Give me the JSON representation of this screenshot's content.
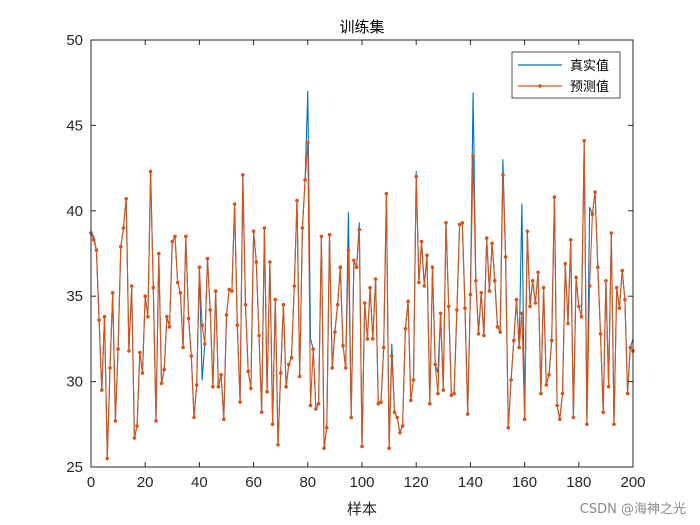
{
  "chart_data": {
    "type": "line",
    "title": "训练集",
    "xlabel": "样本",
    "ylabel": "",
    "xlim": [
      0,
      200
    ],
    "ylim": [
      25,
      50
    ],
    "xticks": [
      0,
      20,
      40,
      60,
      80,
      100,
      120,
      140,
      160,
      180,
      200
    ],
    "yticks": [
      25,
      30,
      35,
      40,
      45,
      50
    ],
    "x_tick_labels": [
      "0",
      "20",
      "40",
      "60",
      "80",
      "100",
      "120",
      "140",
      "160",
      "180",
      "200"
    ],
    "y_tick_labels": [
      "25",
      "30",
      "35",
      "40",
      "45",
      "50"
    ],
    "legend_position": "top-right",
    "series": [
      {
        "name": "真实值",
        "color": "#0072BD",
        "marker": "none",
        "x": [
          1,
          41,
          80,
          81,
          95,
          99,
          111,
          120,
          128,
          141,
          152,
          159,
          184,
          200
        ],
        "values": [
          38.5,
          30.1,
          47.0,
          32.5,
          39.9,
          39.3,
          32.2,
          42.3,
          30.5,
          46.9,
          43.0,
          40.4,
          40.2,
          32.5
        ]
      },
      {
        "name": "预测值",
        "color": "#D95319",
        "marker": "dot",
        "x": [
          0,
          1,
          2,
          3,
          4,
          5,
          6,
          7,
          8,
          9,
          10,
          11,
          12,
          13,
          14,
          15,
          16,
          17,
          18,
          19,
          20,
          21,
          22,
          23,
          24,
          25,
          26,
          27,
          28,
          29,
          30,
          31,
          32,
          33,
          34,
          35,
          36,
          37,
          38,
          39,
          40,
          41,
          42,
          43,
          44,
          45,
          46,
          47,
          48,
          49,
          50,
          51,
          52,
          53,
          54,
          55,
          56,
          57,
          58,
          59,
          60,
          61,
          62,
          63,
          64,
          65,
          66,
          67,
          68,
          69,
          70,
          71,
          72,
          73,
          74,
          75,
          76,
          77,
          78,
          79,
          80,
          81,
          82,
          83,
          84,
          85,
          86,
          87,
          88,
          89,
          90,
          91,
          92,
          93,
          94,
          95,
          96,
          97,
          98,
          99,
          100,
          101,
          102,
          103,
          104,
          105,
          106,
          107,
          108,
          109,
          110,
          111,
          112,
          113,
          114,
          115,
          116,
          117,
          118,
          119,
          120,
          121,
          122,
          123,
          124,
          125,
          126,
          127,
          128,
          129,
          130,
          131,
          132,
          133,
          134,
          135,
          136,
          137,
          138,
          139,
          140,
          141,
          142,
          143,
          144,
          145,
          146,
          147,
          148,
          149,
          150,
          151,
          152,
          153,
          154,
          155,
          156,
          157,
          158,
          159,
          160,
          161,
          162,
          163,
          164,
          165,
          166,
          167,
          168,
          169,
          170,
          171,
          172,
          173,
          174,
          175,
          176,
          177,
          178,
          179,
          180,
          181,
          182,
          183,
          184,
          185,
          186,
          187,
          188,
          189,
          190,
          191,
          192,
          193,
          194,
          195,
          196,
          197,
          198,
          199,
          200
        ],
        "values": [
          38.7,
          38.3,
          37.7,
          33.6,
          29.5,
          33.8,
          25.5,
          30.8,
          35.2,
          27.7,
          31.9,
          37.9,
          39.0,
          40.7,
          31.8,
          35.6,
          26.7,
          27.4,
          31.7,
          30.5,
          35.0,
          33.8,
          42.3,
          35.5,
          27.7,
          37.5,
          29.9,
          30.7,
          33.8,
          33.2,
          38.2,
          38.5,
          35.8,
          35.2,
          32.0,
          38.5,
          33.7,
          31.5,
          27.9,
          29.8,
          36.7,
          33.3,
          32.2,
          37.2,
          34.2,
          29.7,
          35.3,
          29.7,
          30.4,
          27.8,
          33.9,
          35.4,
          35.3,
          40.4,
          33.3,
          28.8,
          42.1,
          34.5,
          30.6,
          29.6,
          38.8,
          37.0,
          32.7,
          28.2,
          39.0,
          29.4,
          37.0,
          27.5,
          34.8,
          26.3,
          30.5,
          34.5,
          29.7,
          31.0,
          31.4,
          35.6,
          40.6,
          30.3,
          39.0,
          41.8,
          44.0,
          28.6,
          31.9,
          28.4,
          28.7,
          38.5,
          26.1,
          27.3,
          38.6,
          30.8,
          32.9,
          34.5,
          36.7,
          32.1,
          30.8,
          37.7,
          27.9,
          37.1,
          36.7,
          38.9,
          26.2,
          34.6,
          32.5,
          35.5,
          32.5,
          36.0,
          28.7,
          28.8,
          32.0,
          41.0,
          26.1,
          31.5,
          28.2,
          27.9,
          27.0,
          27.4,
          33.1,
          34.7,
          28.9,
          30.1,
          42.0,
          35.8,
          38.2,
          35.6,
          37.4,
          28.7,
          36.7,
          31.0,
          29.3,
          34.0,
          29.5,
          39.3,
          34.4,
          29.2,
          29.3,
          34.2,
          39.2,
          39.3,
          34.3,
          28.1,
          35.1,
          43.2,
          35.9,
          32.8,
          35.2,
          32.7,
          38.4,
          35.3,
          38.1,
          35.9,
          33.2,
          32.9,
          42.1,
          37.3,
          27.3,
          30.1,
          32.4,
          34.8,
          32.0,
          34.0,
          27.8,
          38.8,
          34.4,
          35.9,
          34.6,
          36.4,
          29.3,
          35.5,
          29.8,
          30.4,
          32.4,
          40.8,
          28.6,
          27.8,
          29.3,
          36.9,
          33.4,
          38.3,
          27.9,
          36.1,
          34.4,
          33.8,
          44.1,
          27.5,
          35.6,
          39.8,
          41.1,
          36.7,
          32.8,
          28.2,
          35.9,
          29.7,
          38.7,
          27.5,
          35.5,
          34.3,
          36.5,
          34.8,
          29.3,
          32.0,
          31.8
        ]
      }
    ]
  },
  "watermark": "CSDN @海神之光"
}
